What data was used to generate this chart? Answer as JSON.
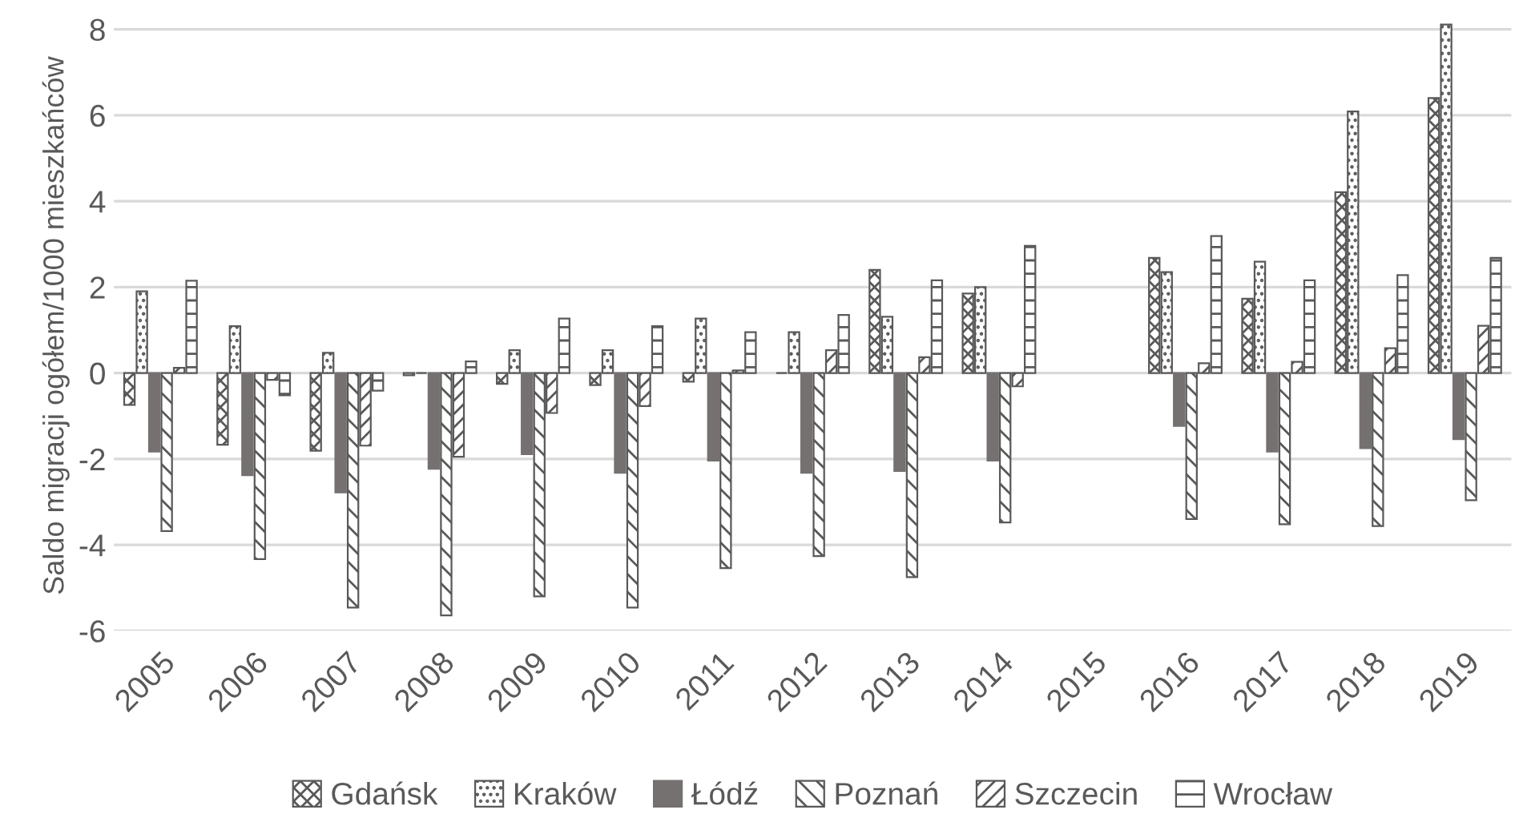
{
  "chart_data": {
    "type": "bar",
    "ylabel": "Saldo migracji ogółem/1000 mieszkańców",
    "categories": [
      "2005",
      "2006",
      "2007",
      "2008",
      "2009",
      "2010",
      "2011",
      "2012",
      "2013",
      "2014",
      "2015",
      "2016",
      "2017",
      "2018",
      "2019"
    ],
    "series": [
      {
        "name": "Gdańsk",
        "color": "#595959",
        "values": [
          -0.74,
          -1.67,
          -1.81,
          -0.05,
          -0.25,
          -0.28,
          -0.2,
          0,
          2.4,
          1.85,
          null,
          2.68,
          1.73,
          4.21,
          6.4
        ]
      },
      {
        "name": "Kraków",
        "color": "#595959",
        "values": [
          1.9,
          1.09,
          0.47,
          0,
          0.53,
          0.53,
          1.27,
          0.95,
          1.31,
          2.0,
          null,
          2.35,
          2.59,
          6.09,
          8.11
        ]
      },
      {
        "name": "Łódź",
        "color": "#767171",
        "values": [
          -1.83,
          -2.38,
          -2.78,
          -2.23,
          -1.89,
          -2.32,
          -2.04,
          -2.32,
          -2.28,
          -2.04,
          null,
          -1.23,
          -1.83,
          -1.75,
          -1.54
        ]
      },
      {
        "name": "Poznań",
        "color": "#595959",
        "values": [
          -3.68,
          -4.33,
          -5.46,
          -5.64,
          -5.2,
          -5.46,
          -4.54,
          -4.26,
          -4.75,
          -3.48,
          null,
          -3.4,
          -3.52,
          -3.56,
          -2.96
        ]
      },
      {
        "name": "Szczecin",
        "color": "#595959",
        "values": [
          0.12,
          -0.16,
          -1.69,
          -1.95,
          -0.93,
          -0.77,
          0.06,
          0.53,
          0.37,
          -0.31,
          null,
          0.23,
          0.26,
          0.58,
          1.1
        ]
      },
      {
        "name": "Wrocław",
        "color": "#595959",
        "values": [
          2.15,
          -0.52,
          -0.41,
          0.27,
          1.27,
          1.09,
          0.95,
          1.35,
          2.16,
          2.96,
          null,
          3.19,
          2.16,
          2.28,
          2.68
        ]
      }
    ],
    "ylim": [
      -6,
      8.2
    ],
    "yticks": [
      -6,
      -4,
      -2,
      0,
      2,
      4,
      6,
      8
    ],
    "grid": "y",
    "legend": "bottom"
  }
}
